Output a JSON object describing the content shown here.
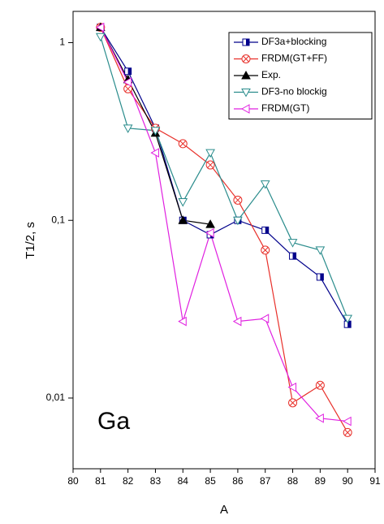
{
  "chart_data": {
    "type": "line",
    "log_y": true,
    "xlabel": "A",
    "ylabel": "T1/2, s",
    "annotation": "Ga",
    "x": [
      81,
      82,
      83,
      84,
      85,
      86,
      87,
      88,
      89,
      90
    ],
    "xlim": [
      80,
      91
    ],
    "xticks": [
      80,
      81,
      82,
      83,
      84,
      85,
      86,
      87,
      88,
      89,
      90,
      91
    ],
    "ylim": [
      0.004,
      1.5
    ],
    "yticks": [
      {
        "value": 0.01,
        "label": "0,01"
      },
      {
        "value": 0.1,
        "label": "0,1"
      },
      1
    ],
    "legend": "top-right",
    "series": [
      {
        "name": "DF3a+blocking",
        "color": "#00008b",
        "marker": "square",
        "values": [
          1.22,
          0.69,
          0.33,
          0.1,
          0.083,
          0.1,
          0.088,
          0.063,
          0.048,
          0.026
        ]
      },
      {
        "name": "FRDM(GT+FF)",
        "color": "#e8302a",
        "marker": "circle-x",
        "values": [
          1.22,
          0.55,
          0.33,
          0.27,
          0.205,
          0.13,
          0.068,
          0.0094,
          0.0118,
          0.0064
        ]
      },
      {
        "name": "Exp.",
        "color": "#000000",
        "marker": "triangle-up",
        "values": [
          1.22,
          0.62,
          0.31,
          0.1,
          0.095,
          null,
          null,
          null,
          null,
          null
        ]
      },
      {
        "name": "DF3-no blockig",
        "color": "#2a8c8c",
        "marker": "triangle-down",
        "values": [
          1.08,
          0.33,
          0.32,
          0.127,
          0.24,
          0.1,
          0.16,
          0.075,
          0.068,
          0.028
        ]
      },
      {
        "name": "FRDM(GT)",
        "color": "#e020e0",
        "marker": "triangle-left",
        "values": [
          1.22,
          0.6,
          0.24,
          0.027,
          0.085,
          0.027,
          0.028,
          0.0115,
          0.0077,
          0.0074
        ]
      }
    ]
  }
}
